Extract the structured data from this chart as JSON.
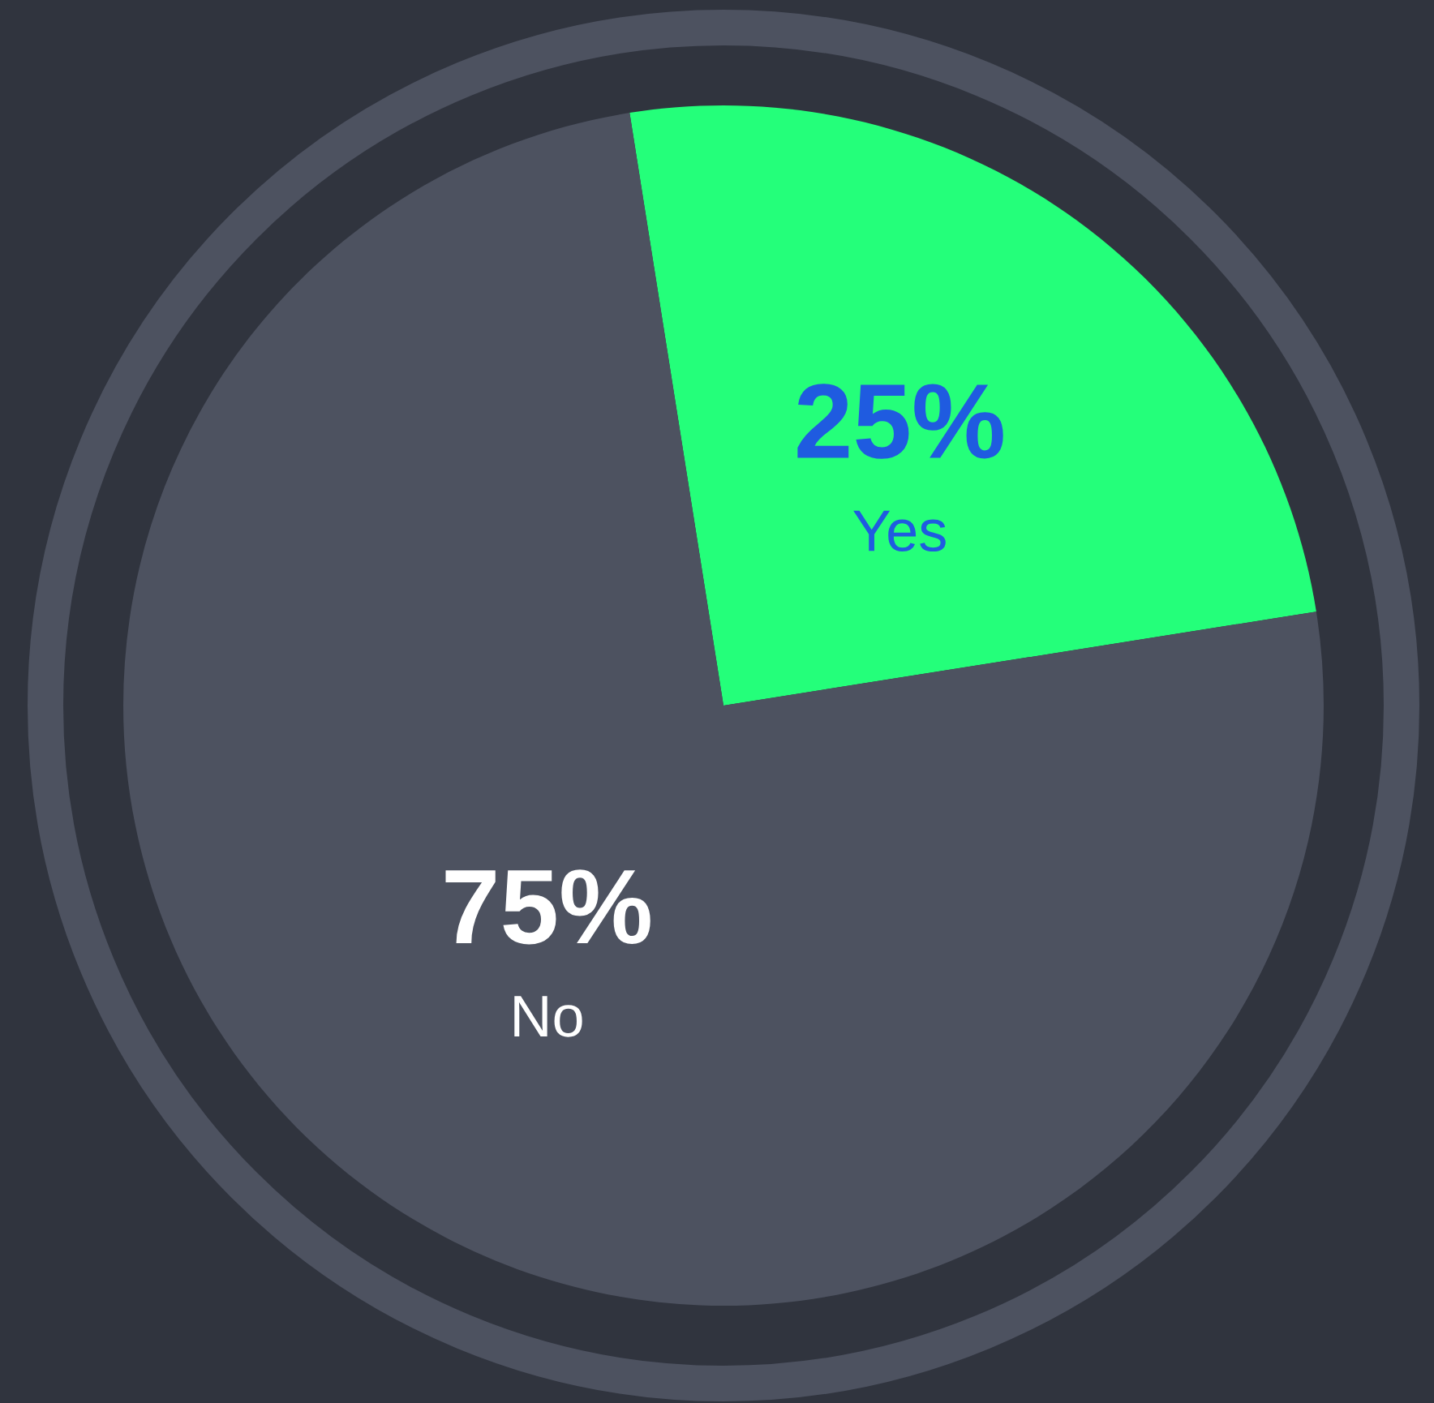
{
  "chart_data": {
    "type": "pie",
    "categories": [
      "Yes",
      "No"
    ],
    "values": [
      25,
      75
    ],
    "colors": [
      "#24ff7a",
      "#4d5260"
    ],
    "value_labels": [
      "25%",
      "75%"
    ],
    "legend": false
  }
}
